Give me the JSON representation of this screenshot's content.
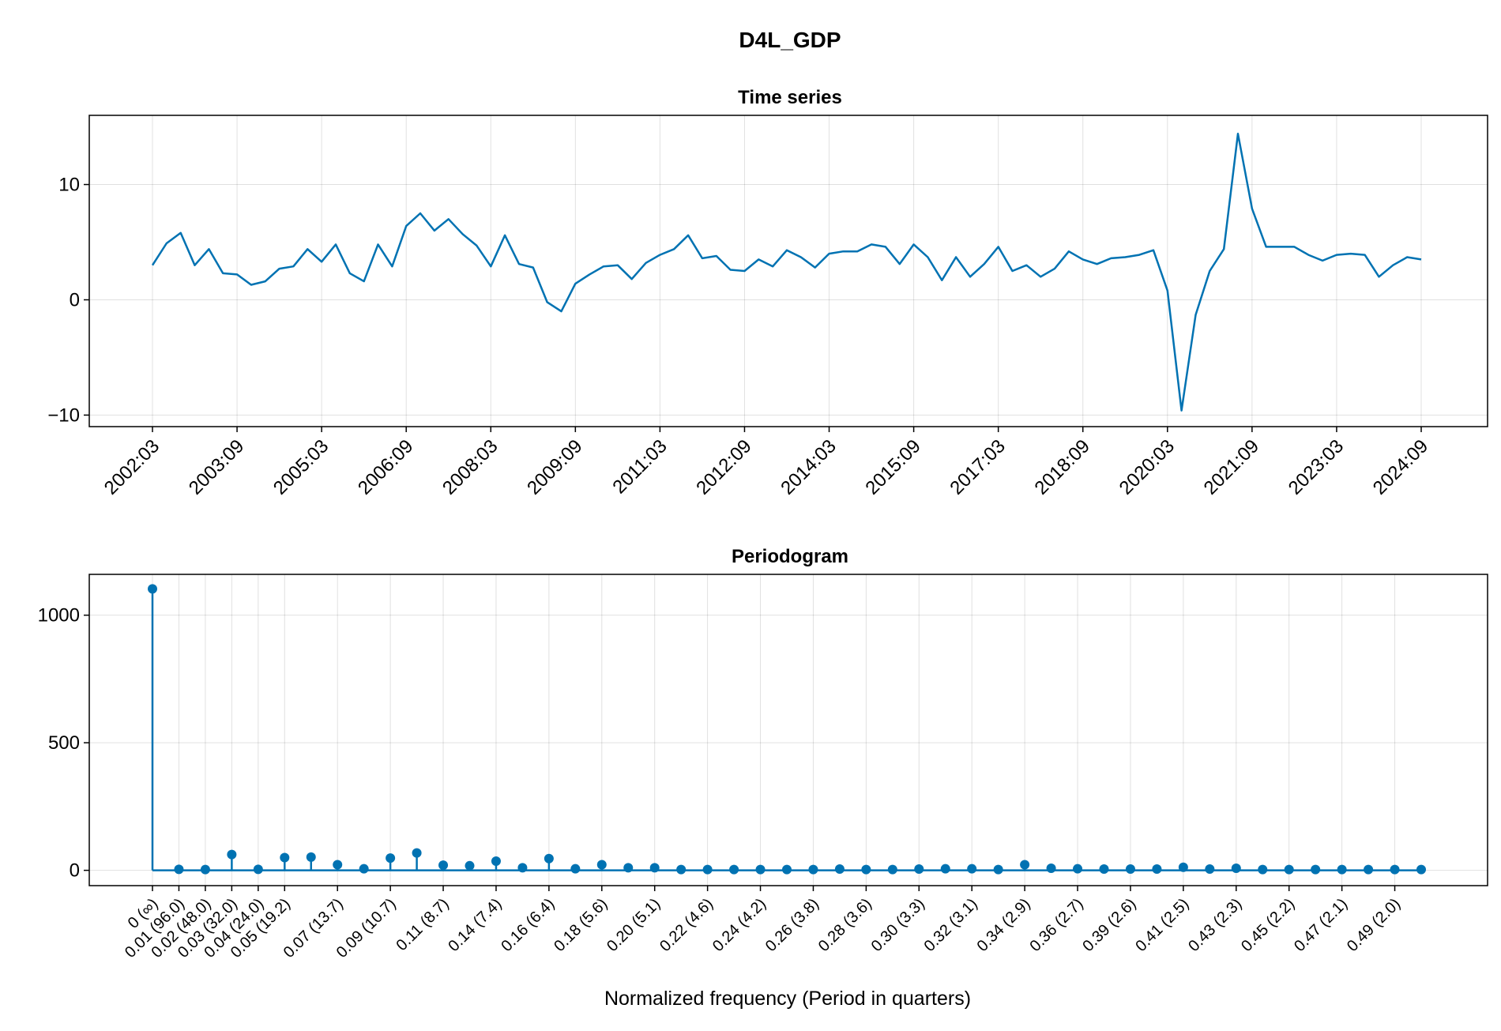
{
  "figure": {
    "title": "D4L_GDP"
  },
  "chart_data": [
    {
      "type": "line",
      "title": "Time series",
      "xlabel": "",
      "ylabel": "",
      "color": "#0072b2",
      "grid": true,
      "ylim": [
        -11,
        16
      ],
      "yticks": [
        -10,
        0,
        10
      ],
      "yticklabels": [
        "−10",
        "0",
        "10"
      ],
      "xticklabels": [
        "2002:03",
        "2003:09",
        "2005:03",
        "2006:09",
        "2008:03",
        "2009:09",
        "2011:03",
        "2012:09",
        "2014:03",
        "2015:09",
        "2017:03",
        "2018:09",
        "2020:03",
        "2021:09",
        "2023:03",
        "2024:09"
      ],
      "x_start": "2002:03",
      "x_end": "2024:09",
      "frequency": "quarterly",
      "values": [
        3.0,
        4.9,
        5.8,
        3.0,
        4.4,
        2.3,
        2.2,
        1.3,
        1.6,
        2.7,
        2.9,
        4.4,
        3.3,
        4.8,
        2.3,
        1.6,
        4.8,
        2.9,
        6.4,
        7.5,
        6.0,
        7.0,
        5.7,
        4.7,
        2.9,
        5.6,
        3.1,
        2.8,
        -0.2,
        -1.0,
        1.4,
        2.2,
        2.9,
        3.0,
        1.8,
        3.2,
        3.9,
        4.4,
        5.6,
        3.6,
        3.8,
        2.6,
        2.5,
        3.5,
        2.9,
        4.3,
        3.7,
        2.8,
        4.0,
        4.2,
        4.2,
        4.8,
        4.6,
        3.1,
        4.8,
        3.7,
        1.7,
        3.7,
        2.0,
        3.1,
        4.6,
        2.5,
        3.0,
        2.0,
        2.7,
        4.2,
        3.5,
        3.1,
        3.6,
        3.7,
        3.9,
        4.3,
        0.8,
        -9.6,
        -1.3,
        2.5,
        4.4,
        14.4,
        7.9,
        4.6,
        4.6,
        4.6,
        3.9,
        3.4,
        3.9,
        4.0,
        3.9,
        2.0,
        3.0,
        3.7,
        3.5
      ]
    },
    {
      "type": "stem",
      "title": "Periodogram",
      "xlabel": "Normalized frequency (Period in quarters)",
      "ylabel": "",
      "color": "#0072b2",
      "grid": true,
      "ylim": [
        -60,
        1160
      ],
      "yticks": [
        0,
        500,
        1000
      ],
      "yticklabels": [
        "0",
        "500",
        "1000"
      ],
      "xtick_indices": [
        0,
        1,
        2,
        3,
        4,
        5,
        7,
        9,
        11,
        13,
        15,
        17,
        19,
        21,
        23,
        25,
        27,
        29,
        31,
        33,
        35,
        37,
        39,
        41,
        43,
        45,
        47
      ],
      "xticklabels": [
        "0 (∞)",
        "0.01 (96.0)",
        "0.02 (48.0)",
        "0.03 (32.0)",
        "0.04 (24.0)",
        "0.05 (19.2)",
        "0.07 (13.7)",
        "0.09 (10.7)",
        "0.11 (8.7)",
        "0.14 (7.4)",
        "0.16 (6.4)",
        "0.18 (5.6)",
        "0.20 (5.1)",
        "0.22 (4.6)",
        "0.24 (4.2)",
        "0.26 (3.8)",
        "0.28 (3.6)",
        "0.30 (3.3)",
        "0.32 (3.1)",
        "0.34 (2.9)",
        "0.36 (2.7)",
        "0.39 (2.6)",
        "0.41 (2.5)",
        "0.43 (2.3)",
        "0.45 (2.2)",
        "0.47 (2.1)",
        "0.49 (2.0)"
      ],
      "values": [
        1103,
        4,
        3,
        62,
        4,
        50,
        52,
        22,
        6,
        48,
        68,
        20,
        18,
        36,
        10,
        46,
        6,
        22,
        10,
        10,
        3,
        3,
        3,
        3,
        3,
        3,
        5,
        3,
        3,
        5,
        6,
        6,
        3,
        22,
        8,
        6,
        5,
        5,
        5,
        12,
        5,
        8,
        3,
        3,
        3,
        3,
        3,
        3,
        3
      ]
    }
  ]
}
